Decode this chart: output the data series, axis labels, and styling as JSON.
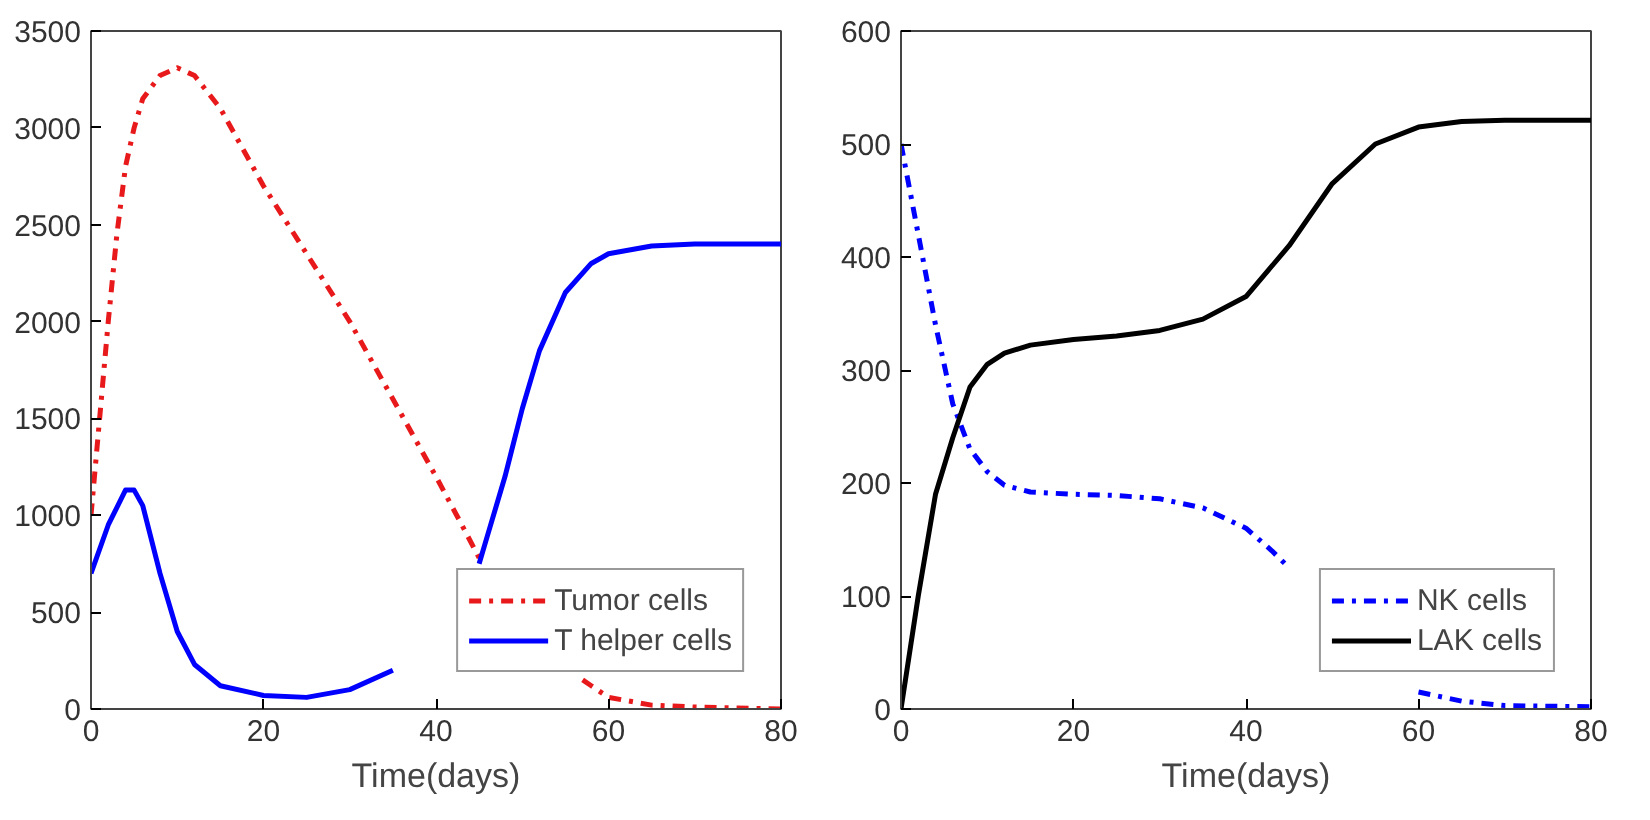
{
  "chart_data": [
    {
      "type": "line",
      "xlabel": "Time(days)",
      "xlim": [
        0,
        80
      ],
      "xticks": [
        0,
        20,
        40,
        60,
        80
      ],
      "ylim": [
        0,
        3500
      ],
      "yticks": [
        0,
        500,
        1000,
        1500,
        2000,
        2500,
        3000,
        3500
      ],
      "grid": false,
      "legend": "bottom right",
      "series": [
        {
          "name": "Tumor cells",
          "color": "#e8191b",
          "line_style": "dashdot",
          "x": [
            0,
            1,
            2,
            3,
            4,
            5,
            6,
            8,
            10,
            12,
            15,
            20,
            25,
            30,
            35,
            40,
            43,
            45,
            46,
            48,
            50,
            52,
            54,
            57,
            58,
            60,
            65,
            70,
            80
          ],
          "values": [
            1000,
            1500,
            2000,
            2450,
            2800,
            3000,
            3150,
            3270,
            3310,
            3270,
            3100,
            2700,
            2350,
            2000,
            1600,
            1200,
            950,
            780,
            null,
            null,
            null,
            null,
            null,
            150,
            120,
            60,
            20,
            10,
            0
          ]
        },
        {
          "name": "T helper cells",
          "color": "#0000ff",
          "line_style": "solid",
          "x": [
            0,
            2,
            4,
            5,
            6,
            8,
            10,
            12,
            15,
            20,
            25,
            30,
            35,
            37,
            40,
            44,
            45,
            46,
            48,
            50,
            52,
            55,
            58,
            60,
            65,
            70,
            80
          ],
          "values": [
            700,
            950,
            1130,
            1130,
            1050,
            700,
            400,
            230,
            120,
            70,
            60,
            100,
            200,
            null,
            null,
            null,
            750,
            900,
            1200,
            1550,
            1850,
            2150,
            2300,
            2350,
            2390,
            2400,
            2400
          ]
        }
      ]
    },
    {
      "type": "line",
      "xlabel": "Time(days)",
      "xlim": [
        0,
        80
      ],
      "xticks": [
        0,
        20,
        40,
        60,
        80
      ],
      "ylim": [
        0,
        600
      ],
      "yticks": [
        0,
        100,
        200,
        300,
        400,
        500,
        600
      ],
      "grid": false,
      "legend": "bottom right",
      "series": [
        {
          "name": "NK cells",
          "color": "#0000ff",
          "line_style": "dashdot",
          "x": [
            0,
            2,
            4,
            6,
            8,
            10,
            12,
            15,
            20,
            25,
            30,
            35,
            40,
            43,
            45,
            46,
            50,
            54,
            55,
            60,
            65,
            70,
            80
          ],
          "values": [
            500,
            420,
            340,
            270,
            230,
            210,
            198,
            192,
            190,
            189,
            186,
            178,
            160,
            140,
            125,
            null,
            null,
            null,
            null,
            15,
            7,
            3,
            2
          ]
        },
        {
          "name": "LAK cells",
          "color": "#000000",
          "line_style": "solid",
          "x": [
            0,
            2,
            4,
            6,
            8,
            10,
            12,
            15,
            20,
            25,
            30,
            35,
            40,
            45,
            50,
            55,
            60,
            65,
            70,
            80
          ],
          "values": [
            0,
            100,
            190,
            240,
            285,
            305,
            315,
            322,
            327,
            330,
            335,
            345,
            365,
            410,
            465,
            500,
            515,
            520,
            521,
            521
          ]
        }
      ]
    }
  ]
}
